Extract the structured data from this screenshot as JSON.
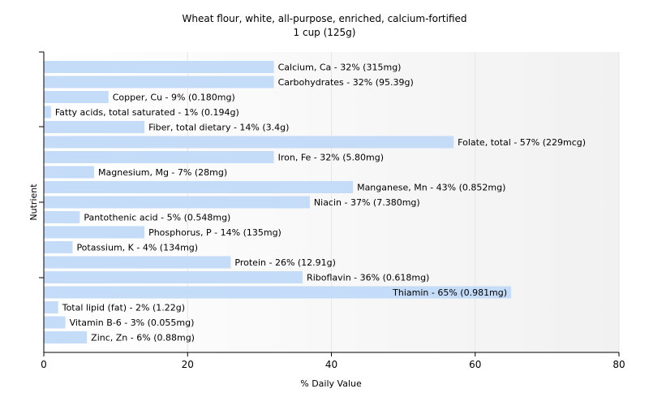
{
  "chart_data": {
    "type": "bar",
    "orientation": "horizontal",
    "title": "Wheat flour, white, all-purpose, enriched, calcium-fortified",
    "subtitle": "1 cup (125g)",
    "xlabel": "% Daily Value",
    "ylabel": "Nutrient",
    "xlim": [
      0,
      80
    ],
    "xticks": [
      "0",
      "20",
      "40",
      "60",
      "80"
    ],
    "grid": true,
    "bar_color": "#c5dcf8",
    "categories": [
      "Calcium, Ca",
      "Carbohydrates",
      "Copper, Cu",
      "Fatty acids, total saturated",
      "Fiber, total dietary",
      "Folate, total",
      "Iron, Fe",
      "Magnesium, Mg",
      "Manganese, Mn",
      "Niacin",
      "Pantothenic acid",
      "Phosphorus, P",
      "Potassium, K",
      "Protein",
      "Riboflavin",
      "Thiamin",
      "Total lipid (fat)",
      "Vitamin B-6",
      "Zinc, Zn"
    ],
    "values": [
      32,
      32,
      9,
      1,
      14,
      57,
      32,
      7,
      43,
      37,
      5,
      14,
      4,
      26,
      36,
      65,
      2,
      3,
      6
    ],
    "labels": [
      "Calcium, Ca - 32% (315mg)",
      "Carbohydrates - 32% (95.39g)",
      "Copper, Cu - 9% (0.180mg)",
      "Fatty acids, total saturated - 1% (0.194g)",
      "Fiber, total dietary - 14% (3.4g)",
      "Folate, total - 57% (229mcg)",
      "Iron, Fe - 32% (5.80mg)",
      "Magnesium, Mg - 7% (28mg)",
      "Manganese, Mn - 43% (0.852mg)",
      "Niacin - 37% (7.380mg)",
      "Pantothenic acid - 5% (0.548mg)",
      "Phosphorus, P - 14% (135mg)",
      "Potassium, K - 4% (134mg)",
      "Protein - 26% (12.91g)",
      "Riboflavin - 36% (0.618mg)",
      "Thiamin - 65% (0.981mg)",
      "Total lipid (fat) - 2% (1.22g)",
      "Vitamin B-6 - 3% (0.055mg)",
      "Zinc, Zn - 6% (0.88mg)"
    ]
  }
}
